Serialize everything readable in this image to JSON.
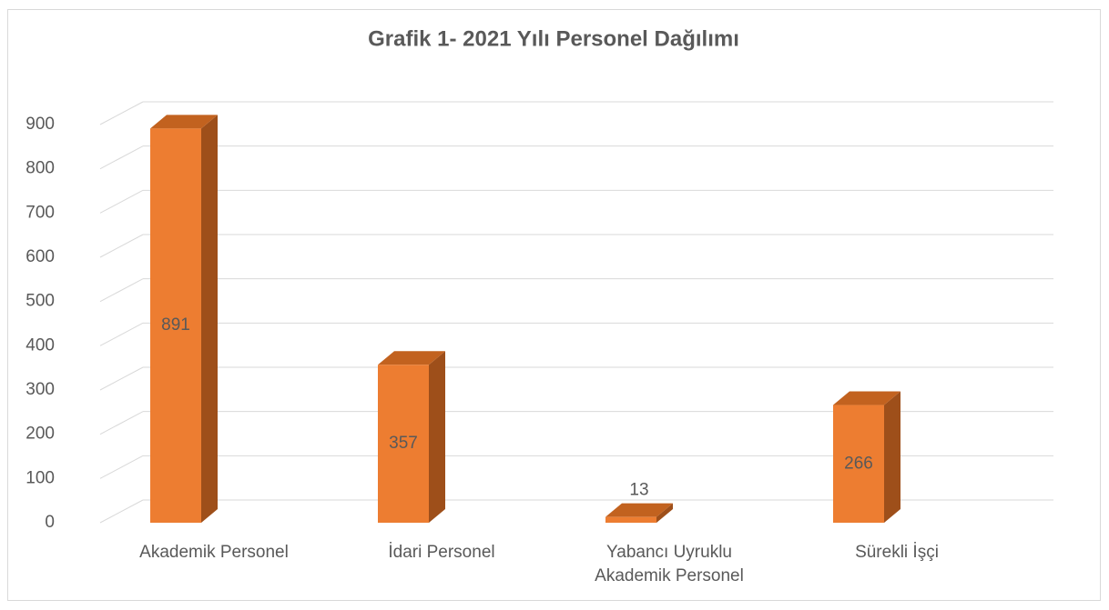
{
  "chart_data": {
    "type": "bar3d",
    "title": "Grafik 1- 2021 Yılı Personel Dağılımı",
    "categories": [
      "Akademik Personel",
      "İdari Personel",
      "Yabancı Uyruklu Akademik Personel",
      "Sürekli İşçi"
    ],
    "values": [
      891,
      357,
      13,
      266
    ],
    "color": "#ed7d31",
    "ylim": [
      0,
      900
    ],
    "yticks": [
      0,
      100,
      200,
      300,
      400,
      500,
      600,
      700,
      800,
      900
    ],
    "grid": true
  }
}
